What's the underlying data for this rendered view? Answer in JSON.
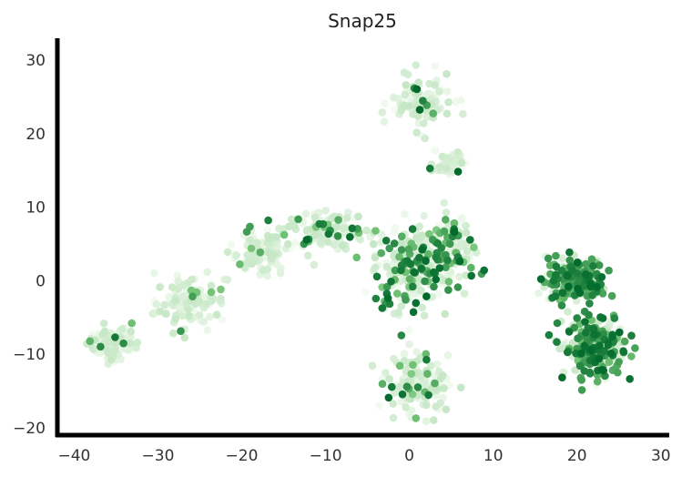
{
  "chart_data": {
    "type": "scatter",
    "title": "Snap25",
    "xlabel": "",
    "ylabel": "",
    "xlim": [
      -42,
      31
    ],
    "ylim": [
      -21,
      33
    ],
    "x_ticks": [
      -40,
      -30,
      -20,
      -10,
      0,
      10,
      20,
      30
    ],
    "y_ticks": [
      -20,
      -10,
      0,
      10,
      20,
      30
    ],
    "x_tick_labels": [
      "−40",
      "−30",
      "−20",
      "−10",
      "0",
      "10",
      "20",
      "30"
    ],
    "y_tick_labels": [
      "−20",
      "−10",
      "0",
      "10",
      "20",
      "30"
    ],
    "grid": false,
    "legend": "none",
    "colormap": "Greens",
    "color_scale": {
      "low": "#f4fbf2",
      "mid": "#74c476",
      "high": "#00692b"
    },
    "value_range": [
      0,
      1
    ],
    "clusters": [
      {
        "name": "cluster-left-tail",
        "x": -35.5,
        "y": -8.5,
        "sx": 2.5,
        "sy": 1.8,
        "n": 90,
        "expression": 0.05
      },
      {
        "name": "cluster-arc-lower",
        "x": -26,
        "y": -3,
        "sx": 3.5,
        "sy": 3,
        "n": 110,
        "expression": 0.08
      },
      {
        "name": "cluster-arc-mid",
        "x": -18,
        "y": 4,
        "sx": 3,
        "sy": 2.5,
        "n": 100,
        "expression": 0.12
      },
      {
        "name": "cluster-arc-top",
        "x": -10,
        "y": 7,
        "sx": 4,
        "sy": 2,
        "n": 130,
        "expression": 0.18
      },
      {
        "name": "cluster-center",
        "x": 0,
        "y": 2,
        "sx": 3.5,
        "sy": 5,
        "n": 240,
        "expression": 0.3
      },
      {
        "name": "cluster-center-right",
        "x": 5,
        "y": 4,
        "sx": 2.5,
        "sy": 4,
        "n": 120,
        "expression": 0.35
      },
      {
        "name": "cluster-top",
        "x": 1.5,
        "y": 24,
        "sx": 3,
        "sy": 3,
        "n": 110,
        "expression": 0.05
      },
      {
        "name": "cluster-upper-small",
        "x": 4.5,
        "y": 16,
        "sx": 1.4,
        "sy": 1.3,
        "n": 45,
        "expression": 0.1
      },
      {
        "name": "cluster-bottom",
        "x": 1,
        "y": -14,
        "sx": 3,
        "sy": 3.2,
        "n": 140,
        "expression": 0.15
      },
      {
        "name": "cluster-right-upper",
        "x": 20,
        "y": 0,
        "sx": 3,
        "sy": 2.6,
        "n": 220,
        "expression": 0.75
      },
      {
        "name": "cluster-right-lower",
        "x": 22,
        "y": -9,
        "sx": 3,
        "sy": 3.5,
        "n": 260,
        "expression": 0.65
      }
    ]
  }
}
